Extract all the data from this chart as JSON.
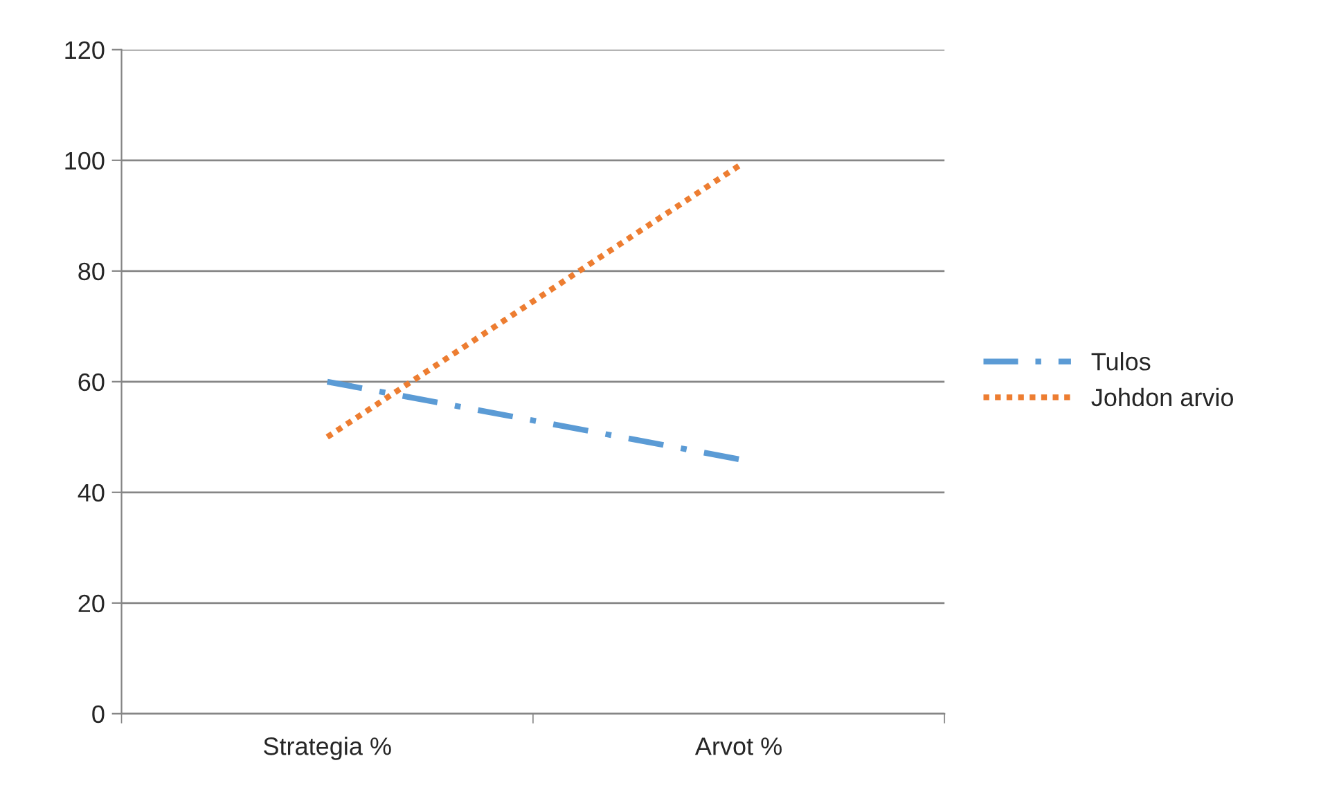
{
  "chart_data": {
    "type": "line",
    "categories": [
      "Strategia %",
      "Arvot %"
    ],
    "series": [
      {
        "name": "Tulos",
        "color": "#5b9bd5",
        "values": [
          60,
          46
        ],
        "line_style": "dashdot"
      },
      {
        "name": "Johdon arvio",
        "color": "#ed7d31",
        "values": [
          50,
          99
        ],
        "line_style": "dotted"
      }
    ],
    "ylim": [
      0,
      120
    ],
    "yticks": [
      0,
      20,
      40,
      60,
      80,
      100,
      120
    ],
    "grid": "y",
    "legend": "right"
  }
}
